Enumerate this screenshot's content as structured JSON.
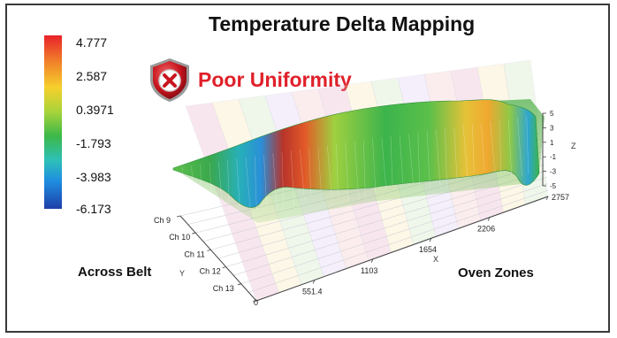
{
  "chart_data": {
    "type": "surface",
    "title": "Temperature Delta Mapping",
    "annotation": "Poor Uniformity",
    "annotation_icon": "shield-x-icon",
    "colorbar": {
      "ticks": [
        "4.777",
        "2.587",
        "0.3971",
        "-1.793",
        "-3.983",
        "-6.173"
      ],
      "range": [
        -6.173,
        4.777
      ],
      "colors": [
        "#e8222a",
        "#f6d02c",
        "#3cb848",
        "#1f8ee0",
        "#1e3fa8"
      ]
    },
    "x_axis": {
      "letter": "X",
      "title": "Oven Zones",
      "ticks": [
        "551.4",
        "1103",
        "1654",
        "2206",
        "2757"
      ],
      "range": [
        0,
        2757
      ]
    },
    "y_axis": {
      "letter": "Y",
      "title": "Across Belt",
      "ticks": [
        "Ch 9",
        "Ch 10",
        "Ch 11",
        "Ch 12",
        "Ch 13",
        "0"
      ]
    },
    "z_axis": {
      "letter": "Z",
      "ticks": [
        "5",
        "3",
        "1",
        "-1",
        "-3",
        "-5"
      ],
      "range": [
        -5,
        5
      ]
    },
    "grid": true
  }
}
